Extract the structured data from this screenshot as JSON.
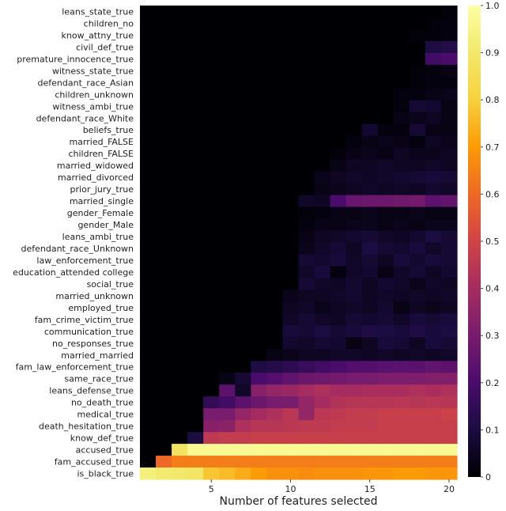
{
  "chart_data": {
    "type": "heatmap",
    "title": "",
    "xlabel": "Number of features selected",
    "ylabel": "",
    "x_ticks": [
      5,
      10,
      15,
      20
    ],
    "x_range": [
      1,
      20
    ],
    "colorscale": "inferno",
    "colorbar": {
      "range": [
        0,
        1
      ],
      "ticks": [
        "0",
        "0.1",
        "0.2",
        "0.3",
        "0.4",
        "0.5",
        "0.6",
        "0.7",
        "0.8",
        "0.9",
        "1.0"
      ]
    },
    "row_labels": [
      "leans_state_true",
      "children_no",
      "know_attny_true",
      "civil_def_true",
      "premature_innocence_true",
      "witness_state_true",
      "defendant_race_Asian",
      "children_unknown",
      "witness_ambi_true",
      "defendant_race_White",
      "beliefs_true",
      "married_FALSE",
      "children_FALSE",
      "married_widowed",
      "married_divorced",
      "prior_jury_true",
      "married_single",
      "gender_Female",
      "gender_Male",
      "leans_ambi_true",
      "defendant_race_Unknown",
      "law_enforcement_true",
      "education_attended college",
      "social_true",
      "married_unknown",
      "employed_true",
      "fam_crime_victim_true",
      "communication_true",
      "no_responses_true",
      "married_married",
      "fam_law_enforcement_true",
      "same_race_true",
      "leans_defense_true",
      "no_death_true",
      "medical_true",
      "death_hesitation_true",
      "know_def_true",
      "accused_true",
      "fam_accused_true",
      "is_black_true"
    ],
    "values": [
      [
        0,
        0,
        0,
        0,
        0,
        0,
        0,
        0,
        0,
        0,
        0,
        0,
        0,
        0,
        0,
        0,
        0,
        0,
        0,
        0.01
      ],
      [
        0,
        0,
        0,
        0,
        0,
        0,
        0,
        0,
        0,
        0,
        0,
        0,
        0,
        0,
        0,
        0,
        0,
        0,
        0.01,
        0.02
      ],
      [
        0,
        0,
        0,
        0,
        0,
        0,
        0,
        0,
        0,
        0,
        0,
        0,
        0,
        0,
        0,
        0,
        0,
        0.01,
        0.01,
        0.02
      ],
      [
        0,
        0,
        0,
        0,
        0,
        0,
        0,
        0,
        0,
        0,
        0,
        0,
        0,
        0,
        0,
        0,
        0,
        0,
        0.1,
        0.12
      ],
      [
        0,
        0,
        0,
        0,
        0,
        0,
        0,
        0,
        0,
        0,
        0,
        0,
        0,
        0,
        0,
        0,
        0,
        0,
        0.18,
        0.2
      ],
      [
        0,
        0,
        0,
        0,
        0,
        0,
        0,
        0,
        0,
        0,
        0,
        0,
        0,
        0,
        0,
        0,
        0,
        0.01,
        0.02,
        0.03
      ],
      [
        0,
        0,
        0,
        0,
        0,
        0,
        0,
        0,
        0,
        0,
        0,
        0,
        0,
        0,
        0,
        0,
        0,
        0.01,
        0.02,
        0.02
      ],
      [
        0,
        0,
        0,
        0,
        0,
        0,
        0,
        0,
        0,
        0,
        0,
        0,
        0,
        0,
        0,
        0,
        0.02,
        0.02,
        0.03,
        0.04
      ],
      [
        0,
        0,
        0,
        0,
        0,
        0,
        0,
        0,
        0,
        0,
        0,
        0,
        0,
        0,
        0,
        0,
        0.02,
        0.08,
        0.07,
        0.03
      ],
      [
        0,
        0,
        0,
        0,
        0,
        0,
        0,
        0,
        0,
        0,
        0,
        0,
        0,
        0,
        0,
        0,
        0.03,
        0.04,
        0.05,
        0.03
      ],
      [
        0,
        0,
        0,
        0,
        0,
        0,
        0,
        0,
        0,
        0,
        0,
        0,
        0,
        0,
        0.07,
        0.02,
        0.02,
        0.08,
        0.03,
        0.03
      ],
      [
        0,
        0,
        0,
        0,
        0,
        0,
        0,
        0,
        0,
        0,
        0,
        0,
        0,
        0.02,
        0.03,
        0.04,
        0.03,
        0.02,
        0.05,
        0.04
      ],
      [
        0,
        0,
        0,
        0,
        0,
        0,
        0,
        0,
        0,
        0,
        0,
        0,
        0.01,
        0.03,
        0.04,
        0.03,
        0.05,
        0.04,
        0.04,
        0.05
      ],
      [
        0,
        0,
        0,
        0,
        0,
        0,
        0,
        0,
        0,
        0,
        0,
        0,
        0.03,
        0.05,
        0.05,
        0.06,
        0.05,
        0.05,
        0.06,
        0.05
      ],
      [
        0,
        0,
        0,
        0,
        0,
        0,
        0,
        0,
        0,
        0,
        0,
        0.04,
        0.05,
        0.06,
        0.05,
        0.06,
        0.07,
        0.08,
        0.09,
        0.08
      ],
      [
        0,
        0,
        0,
        0,
        0,
        0,
        0,
        0,
        0,
        0,
        0,
        0.03,
        0.04,
        0.05,
        0.06,
        0.05,
        0.06,
        0.05,
        0.07,
        0.06
      ],
      [
        0,
        0,
        0,
        0,
        0,
        0,
        0,
        0,
        0,
        0,
        0.06,
        0.05,
        0.2,
        0.26,
        0.27,
        0.27,
        0.28,
        0.29,
        0.24,
        0.25
      ],
      [
        0,
        0,
        0,
        0,
        0,
        0,
        0,
        0,
        0,
        0,
        0.01,
        0.02,
        0.03,
        0.03,
        0.04,
        0.03,
        0.03,
        0.04,
        0.03,
        0.03
      ],
      [
        0,
        0,
        0,
        0,
        0,
        0,
        0,
        0,
        0,
        0,
        0.02,
        0.03,
        0.03,
        0.04,
        0.04,
        0.03,
        0.04,
        0.03,
        0.04,
        0.04
      ],
      [
        0,
        0,
        0,
        0,
        0,
        0,
        0,
        0,
        0,
        0,
        0.03,
        0.05,
        0.06,
        0.07,
        0.08,
        0.06,
        0.05,
        0.07,
        0.1,
        0.08
      ],
      [
        0,
        0,
        0,
        0,
        0,
        0,
        0,
        0,
        0,
        0,
        0.04,
        0.06,
        0.08,
        0.05,
        0.1,
        0.08,
        0.07,
        0.09,
        0.06,
        0.08
      ],
      [
        0,
        0,
        0,
        0,
        0,
        0,
        0,
        0,
        0,
        0,
        0.08,
        0.07,
        0.09,
        0.06,
        0.08,
        0.05,
        0.09,
        0.07,
        0.09,
        0.08
      ],
      [
        0,
        0,
        0,
        0,
        0,
        0,
        0,
        0,
        0,
        0,
        0.06,
        0.09,
        0.02,
        0.06,
        0.07,
        0.03,
        0.06,
        0.08,
        0.05,
        0.07
      ],
      [
        0,
        0,
        0,
        0,
        0,
        0,
        0,
        0,
        0,
        0,
        0.08,
        0.06,
        0.05,
        0.07,
        0.05,
        0.07,
        0.06,
        0.04,
        0.06,
        0.05
      ],
      [
        0,
        0,
        0,
        0,
        0,
        0,
        0,
        0,
        0,
        0.04,
        0.05,
        0.05,
        0.06,
        0.07,
        0.05,
        0.06,
        0.05,
        0.06,
        0.05,
        0.06
      ],
      [
        0,
        0,
        0,
        0,
        0,
        0,
        0,
        0,
        0,
        0.05,
        0.06,
        0.04,
        0.05,
        0.06,
        0.05,
        0.07,
        0.03,
        0.05,
        0.04,
        0.05
      ],
      [
        0,
        0,
        0,
        0,
        0,
        0,
        0,
        0,
        0,
        0.06,
        0.08,
        0.06,
        0.05,
        0.08,
        0.07,
        0.08,
        0.06,
        0.09,
        0.08,
        0.09
      ],
      [
        0,
        0,
        0,
        0,
        0,
        0,
        0,
        0,
        0,
        0.09,
        0.08,
        0.1,
        0.08,
        0.09,
        0.11,
        0.1,
        0.09,
        0.11,
        0.09,
        0.1
      ],
      [
        0,
        0,
        0,
        0,
        0,
        0,
        0,
        0,
        0,
        0.07,
        0.06,
        0.08,
        0.07,
        0.03,
        0.05,
        0.09,
        0.08,
        0.05,
        0.09,
        0.08
      ],
      [
        0,
        0,
        0,
        0,
        0,
        0,
        0,
        0,
        0.03,
        0.04,
        0.05,
        0.05,
        0.06,
        0.06,
        0.05,
        0.06,
        0.05,
        0.06,
        0.05,
        0.06
      ],
      [
        0,
        0,
        0,
        0,
        0,
        0,
        0,
        0.11,
        0.12,
        0.14,
        0.16,
        0.18,
        0.2,
        0.22,
        0.22,
        0.23,
        0.24,
        0.23,
        0.25,
        0.24
      ],
      [
        0,
        0,
        0,
        0,
        0,
        0.03,
        0.08,
        0.2,
        0.22,
        0.25,
        0.27,
        0.28,
        0.29,
        0.3,
        0.3,
        0.31,
        0.31,
        0.31,
        0.32,
        0.32
      ],
      [
        0,
        0,
        0,
        0,
        0,
        0.24,
        0.06,
        0.33,
        0.36,
        0.37,
        0.4,
        0.42,
        0.4,
        0.4,
        0.41,
        0.41,
        0.41,
        0.42,
        0.41,
        0.42
      ],
      [
        0,
        0,
        0,
        0,
        0.15,
        0.18,
        0.24,
        0.27,
        0.3,
        0.3,
        0.36,
        0.4,
        0.43,
        0.44,
        0.44,
        0.44,
        0.45,
        0.44,
        0.45,
        0.44
      ],
      [
        0,
        0,
        0,
        0,
        0.3,
        0.3,
        0.36,
        0.4,
        0.42,
        0.45,
        0.36,
        0.45,
        0.46,
        0.47,
        0.47,
        0.48,
        0.48,
        0.48,
        0.48,
        0.49
      ],
      [
        0,
        0,
        0,
        0,
        0.33,
        0.34,
        0.42,
        0.44,
        0.44,
        0.45,
        0.46,
        0.46,
        0.47,
        0.47,
        0.47,
        0.48,
        0.48,
        0.48,
        0.48,
        0.48
      ],
      [
        0,
        0,
        0,
        0.1,
        0.46,
        0.47,
        0.47,
        0.48,
        0.48,
        0.48,
        0.48,
        0.48,
        0.48,
        0.48,
        0.48,
        0.48,
        0.48,
        0.48,
        0.48,
        0.48
      ],
      [
        0,
        0,
        0.88,
        0.97,
        0.97,
        0.97,
        0.97,
        0.97,
        0.97,
        0.97,
        0.97,
        0.97,
        0.97,
        0.97,
        0.97,
        0.97,
        0.97,
        0.97,
        0.97,
        0.97
      ],
      [
        0,
        0.6,
        0.64,
        0.64,
        0.64,
        0.64,
        0.64,
        0.64,
        0.64,
        0.64,
        0.64,
        0.64,
        0.64,
        0.64,
        0.64,
        0.64,
        0.64,
        0.64,
        0.64,
        0.64
      ],
      [
        0.93,
        0.91,
        0.9,
        0.89,
        0.78,
        0.76,
        0.73,
        0.7,
        0.68,
        0.68,
        0.67,
        0.68,
        0.68,
        0.68,
        0.69,
        0.69,
        0.7,
        0.7,
        0.69,
        0.69
      ]
    ]
  }
}
